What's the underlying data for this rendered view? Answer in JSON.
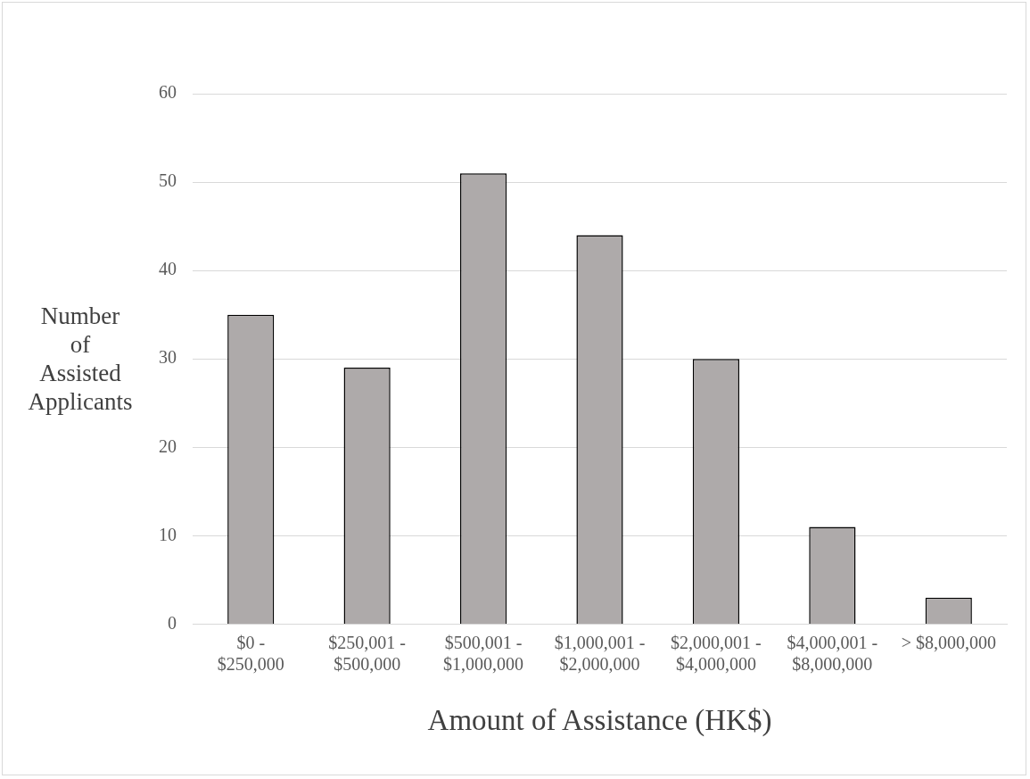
{
  "chart_data": {
    "type": "bar",
    "xlabel": "Amount of Assistance (HK$)",
    "ylabel": "Number of Assisted Applicants",
    "categories": [
      "$0 - $250,000",
      "$250,001 - $500,000",
      "$500,001 - $1,000,000",
      "$1,000,001 - $2,000,000",
      "$2,000,001 - $4,000,000",
      "$4,000,001 - $8,000,000",
      "> $8,000,000"
    ],
    "values": [
      35,
      29,
      51,
      44,
      30,
      11,
      3
    ],
    "color": "#aeaaaa",
    "ylim": [
      0,
      60
    ],
    "yticks": [
      0,
      10,
      20,
      30,
      40,
      50,
      60
    ],
    "grid": "y",
    "legend": false
  }
}
